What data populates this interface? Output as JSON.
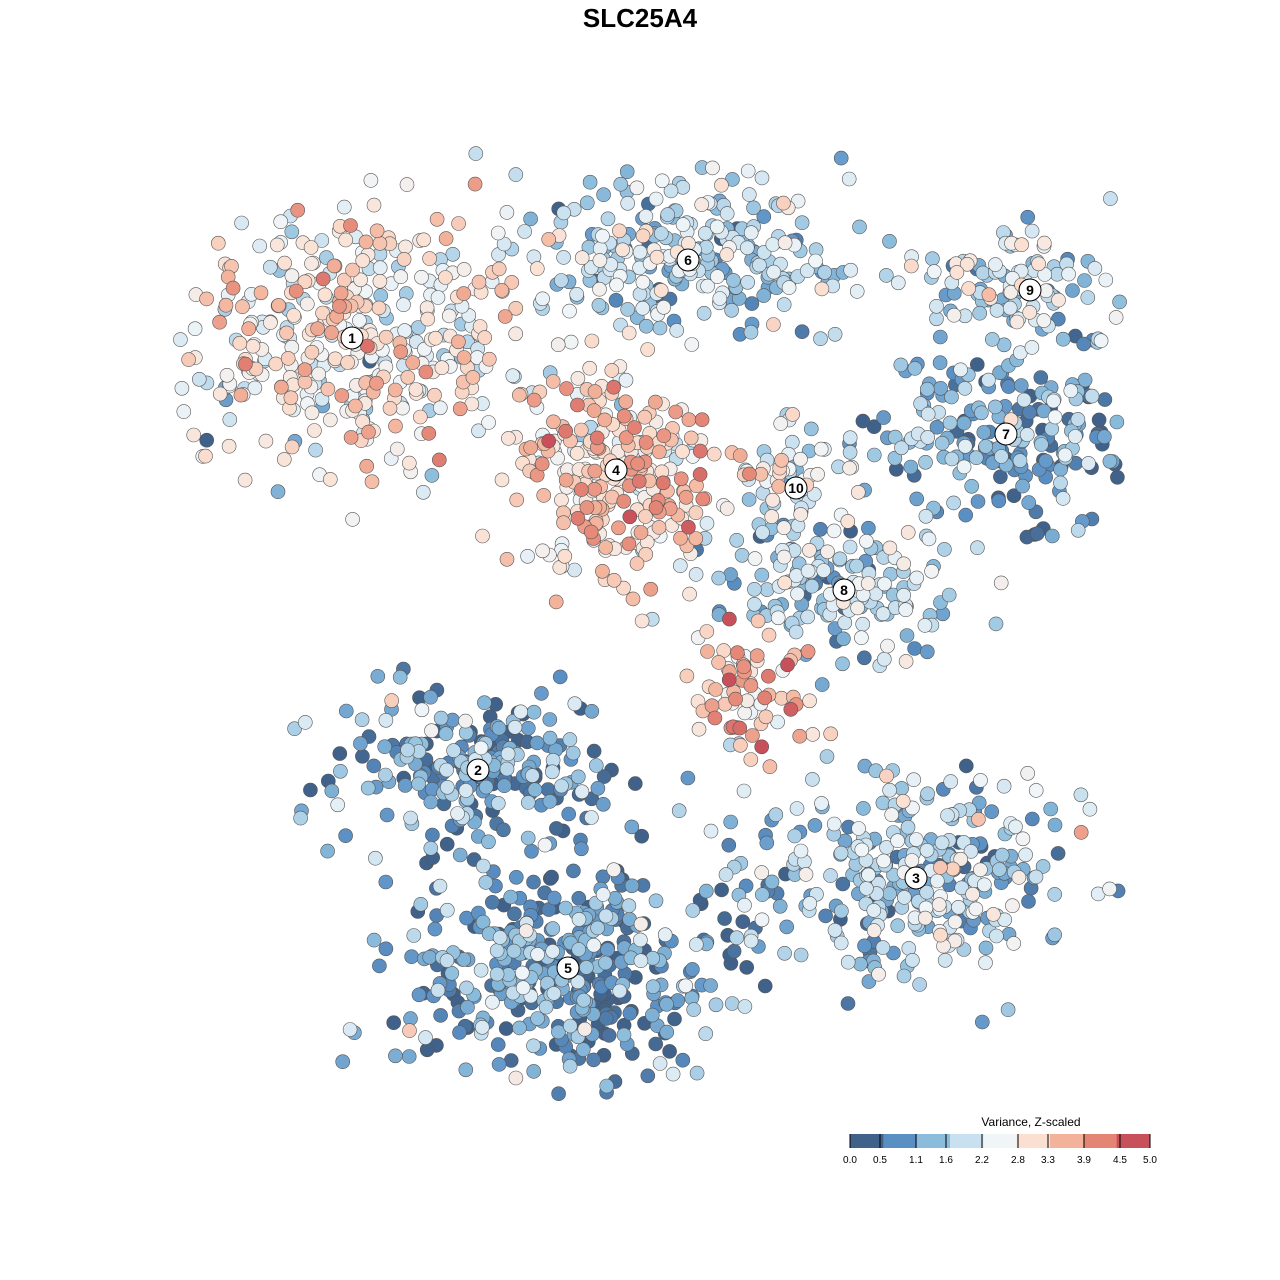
{
  "chart_data": {
    "type": "scatter",
    "title": "SLC25A4",
    "axes_visible": false,
    "x_range": [
      -40,
      40
    ],
    "y_range": [
      -40,
      40
    ],
    "clusters": [
      {
        "label": "1",
        "x": -24,
        "y": 23.5,
        "mean": 2.7
      },
      {
        "label": "2",
        "x": -13.5,
        "y": -12.5,
        "mean": 0.8
      },
      {
        "label": "3",
        "x": 23,
        "y": -21.5,
        "mean": 1.6
      },
      {
        "label": "4",
        "x": -2,
        "y": 12.5,
        "mean": 3.2
      },
      {
        "label": "5",
        "x": -6,
        "y": -29,
        "mean": 0.7
      },
      {
        "label": "6",
        "x": 4,
        "y": 30,
        "mean": 1.7
      },
      {
        "label": "7",
        "x": 30.5,
        "y": 15.5,
        "mean": 0.9
      },
      {
        "label": "8",
        "x": 17,
        "y": 2.5,
        "mean": 1.6
      },
      {
        "label": "9",
        "x": 32.5,
        "y": 27.5,
        "mean": 1.6
      },
      {
        "label": "10",
        "x": 13,
        "y": 11,
        "mean": 2.0
      }
    ],
    "highlight": {
      "x": 9,
      "y": -6,
      "mean": 3.4
    },
    "colorbar": {
      "title": "Variance, Z-scaled",
      "min": 0.0,
      "max": 5.0,
      "ticks": [
        "0.0",
        "0.5",
        "1.1",
        "1.6",
        "2.2",
        "2.8",
        "3.3",
        "3.9",
        "4.5",
        "5.0"
      ],
      "colors": [
        "#40628a",
        "#5a8fc4",
        "#8bbcdc",
        "#c8e0ef",
        "#f0f5f8",
        "#fbe0d2",
        "#f3b39b",
        "#e48475",
        "#c8505a"
      ]
    }
  }
}
